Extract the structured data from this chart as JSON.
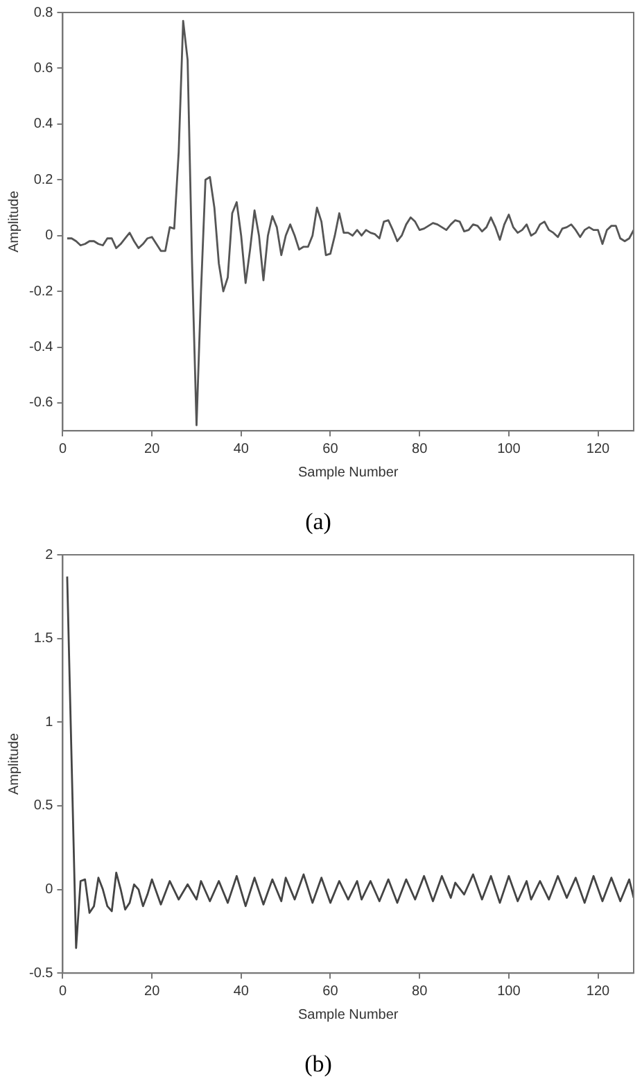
{
  "chart_data": [
    {
      "type": "line",
      "title": "(a)",
      "xlabel": "Sample Number",
      "ylabel": "Amplitude",
      "xlim": [
        0,
        128
      ],
      "xticks": [
        0,
        20,
        40,
        60,
        80,
        100,
        120
      ],
      "ylim": [
        -0.7,
        0.8
      ],
      "yticks": [
        -0.6,
        -0.4,
        -0.2,
        0,
        0.2,
        0.4,
        0.6,
        0.8
      ],
      "grid": false,
      "series": [
        {
          "color": "#555555",
          "x": [
            1,
            2,
            3,
            4,
            5,
            6,
            7,
            8,
            9,
            10,
            11,
            12,
            13,
            14,
            15,
            16,
            17,
            18,
            19,
            20,
            21,
            22,
            23,
            24,
            25,
            26,
            27,
            28,
            29,
            30,
            31,
            32,
            33,
            34,
            35,
            36,
            37,
            38,
            39,
            40,
            41,
            42,
            43,
            44,
            45,
            46,
            47,
            48,
            49,
            50,
            51,
            52,
            53,
            54,
            55,
            56,
            57,
            58,
            59,
            60,
            61,
            62,
            63,
            64,
            65,
            66,
            67,
            68,
            69,
            70,
            71,
            72,
            73,
            74,
            75,
            76,
            77,
            78,
            79,
            80,
            81,
            82,
            83,
            84,
            85,
            86,
            87,
            88,
            89,
            90,
            91,
            92,
            93,
            94,
            95,
            96,
            97,
            98,
            99,
            100,
            101,
            102,
            103,
            104,
            105,
            106,
            107,
            108,
            109,
            110,
            111,
            112,
            113,
            114,
            115,
            116,
            117,
            118,
            119,
            120,
            121,
            122,
            123,
            124,
            125,
            126,
            127,
            128
          ],
          "values": [
            -0.01,
            -0.01,
            -0.02,
            -0.035,
            -0.03,
            -0.02,
            -0.02,
            -0.03,
            -0.035,
            -0.01,
            -0.01,
            -0.045,
            -0.03,
            -0.01,
            0.01,
            -0.02,
            -0.045,
            -0.03,
            -0.01,
            -0.005,
            -0.03,
            -0.055,
            -0.055,
            0.03,
            0.025,
            0.3,
            0.77,
            0.63,
            -0.1,
            -0.68,
            -0.2,
            0.2,
            0.21,
            0.1,
            -0.1,
            -0.2,
            -0.15,
            0.08,
            0.12,
            0,
            -0.17,
            -0.05,
            0.09,
            0,
            -0.16,
            0,
            0.07,
            0.03,
            -0.07,
            0,
            0.04,
            0,
            -0.05,
            -0.04,
            -0.04,
            0,
            0.1,
            0.05,
            -0.07,
            -0.065,
            0,
            0.08,
            0.01,
            0.01,
            0,
            0.02,
            0,
            0.02,
            0.01,
            0.005,
            -0.01,
            0.05,
            0.055,
            0.02,
            -0.02,
            0,
            0.04,
            0.065,
            0.05,
            0.02,
            0.025,
            0.035,
            0.045,
            0.04,
            0.03,
            0.02,
            0.04,
            0.055,
            0.05,
            0.015,
            0.02,
            0.04,
            0.035,
            0.015,
            0.03,
            0.065,
            0.03,
            -0.015,
            0.04,
            0.075,
            0.03,
            0.01,
            0.02,
            0.04,
            0,
            0.01,
            0.04,
            0.05,
            0.02,
            0.01,
            -0.005,
            0.025,
            0.03,
            0.04,
            0.02,
            -0.005,
            0.02,
            0.03,
            0.02,
            0.02,
            -0.03,
            0.02,
            0.035,
            0.035,
            -0.01,
            -0.02,
            -0.01,
            0.02
          ]
        }
      ]
    },
    {
      "type": "line",
      "title": "(b)",
      "xlabel": "Sample Number",
      "ylabel": "Amplitude",
      "xlim": [
        0,
        128
      ],
      "xticks": [
        0,
        20,
        40,
        60,
        80,
        100,
        120
      ],
      "ylim": [
        -0.5,
        2
      ],
      "yticks": [
        -0.5,
        0,
        0.5,
        1,
        1.5,
        2
      ],
      "grid": false,
      "series": [
        {
          "color": "#444444",
          "x": [
            1,
            3,
            4,
            5,
            6,
            7,
            8,
            9,
            10,
            11,
            12,
            13,
            14,
            15,
            16,
            17,
            18,
            19,
            20,
            22,
            24,
            26,
            28,
            30,
            31,
            33,
            35,
            37,
            39,
            41,
            43,
            45,
            47,
            49,
            50,
            52,
            54,
            56,
            58,
            60,
            62,
            64,
            66,
            67,
            69,
            71,
            73,
            75,
            77,
            79,
            81,
            83,
            85,
            87,
            88,
            90,
            92,
            94,
            96,
            98,
            100,
            102,
            104,
            105,
            107,
            109,
            111,
            113,
            115,
            117,
            119,
            121,
            123,
            125,
            127,
            128
          ],
          "values": [
            1.87,
            -0.35,
            0.05,
            0.06,
            -0.14,
            -0.1,
            0.07,
            0,
            -0.1,
            -0.13,
            0.1,
            0,
            -0.12,
            -0.08,
            0.03,
            0,
            -0.1,
            -0.03,
            0.06,
            -0.09,
            0.05,
            -0.06,
            0.03,
            -0.06,
            0.05,
            -0.07,
            0.05,
            -0.08,
            0.08,
            -0.1,
            0.07,
            -0.09,
            0.06,
            -0.07,
            0.07,
            -0.06,
            0.09,
            -0.08,
            0.07,
            -0.08,
            0.05,
            -0.06,
            0.05,
            -0.06,
            0.05,
            -0.07,
            0.06,
            -0.08,
            0.06,
            -0.06,
            0.08,
            -0.07,
            0.08,
            -0.05,
            0.04,
            -0.03,
            0.09,
            -0.06,
            0.08,
            -0.08,
            0.08,
            -0.07,
            0.05,
            -0.06,
            0.05,
            -0.06,
            0.08,
            -0.05,
            0.07,
            -0.08,
            0.08,
            -0.07,
            0.07,
            -0.07,
            0.06,
            -0.05
          ]
        }
      ]
    }
  ]
}
